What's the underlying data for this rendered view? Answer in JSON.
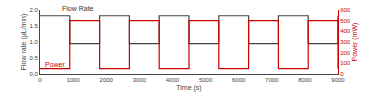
{
  "chart_data": {
    "type": "line",
    "xlabel": "Time (s)",
    "ylabel": "Flow rate (μL/min)",
    "y2label": "Power (mW)",
    "x": [
      0,
      900,
      1800,
      2700,
      3600,
      4500,
      5400,
      6300,
      7200,
      8100,
      9000
    ],
    "series": [
      {
        "color": "#444444",
        "values": [
          1.82,
          0.95,
          1.82,
          0.95,
          1.82,
          0.95,
          1.82,
          0.95,
          1.82,
          0.95,
          1.82
        ]
      },
      {
        "color": "#cc0000",
        "axis": "y2",
        "values": [
          50,
          500,
          50,
          500,
          50,
          500,
          50,
          500,
          50,
          500,
          50
        ]
      }
    ],
    "xlim": [
      0,
      9000
    ],
    "xticks": [
      0,
      1000,
      2000,
      3000,
      4000,
      5000,
      6000,
      7000,
      8000,
      9000
    ],
    "ylim": [
      0,
      2.0
    ],
    "yticks": [
      {
        "value": 0,
        "label": "0.0"
      },
      0.5,
      {
        "value": 1,
        "label": "1.0"
      },
      1.5,
      {
        "value": 2,
        "label": "2.0"
      }
    ],
    "y2lim": [
      0,
      600
    ],
    "y2ticks": [
      0,
      100,
      200,
      300,
      400,
      500,
      600
    ],
    "grid": false,
    "annotations": [
      {
        "text": "Flow Rate",
        "x": 600,
        "y": 1.88,
        "color": "#333333"
      },
      {
        "text": "Power",
        "x": 100,
        "y": 0.12,
        "color": "#cc0000"
      }
    ]
  }
}
